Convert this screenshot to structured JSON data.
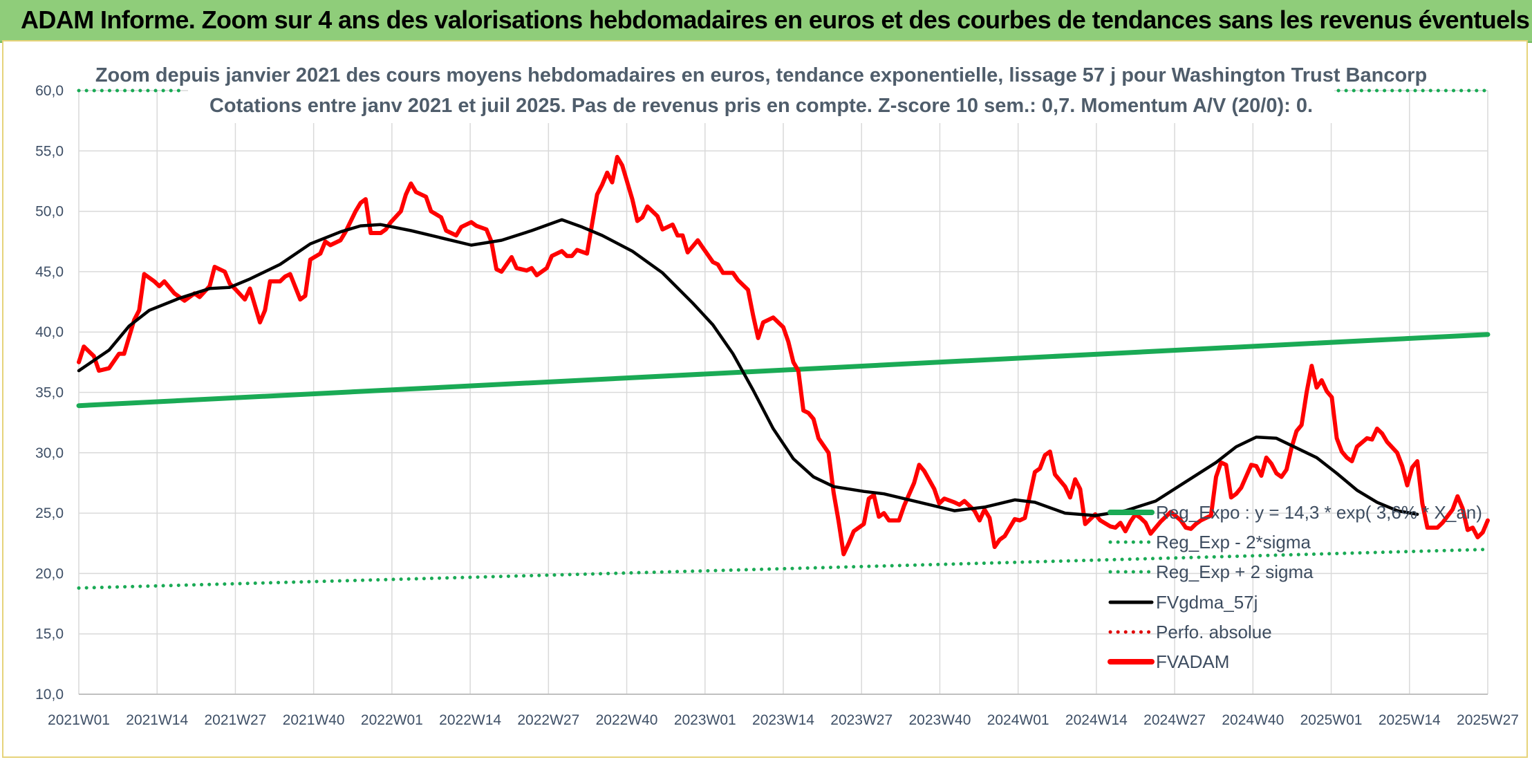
{
  "banner": {
    "title": "ADAM Informe. Zoom sur 4 ans des valorisations hebdomadaires en euros et des courbes de tendances sans les revenus éventuels"
  },
  "colors": {
    "banner": "#8fcd7a",
    "reg_expo": "#1aaa55",
    "fvgdma": "#000000",
    "fvadam": "#ff0000",
    "perfo": "#e00000",
    "grid": "#d9d9d9"
  },
  "chart_data": {
    "type": "line",
    "title": "Zoom depuis janvier 2021 des cours moyens hebdomadaires en euros, tendance exponentielle, lissage 57 j pour Washington Trust Bancorp",
    "subtitle": "Cotations entre janv 2021 et juil 2025. Pas de revenus pris en compte. Z-score 10 sem.: 0,7. Momentum A/V (20/0): 0.",
    "xlabel": "",
    "ylabel": "",
    "ylim": [
      10,
      60
    ],
    "yticks": [
      "10,0",
      "15,0",
      "20,0",
      "25,0",
      "30,0",
      "35,0",
      "40,0",
      "45,0",
      "50,0",
      "55,0",
      "60,0"
    ],
    "xticks": [
      "2021W01",
      "2021W14",
      "2021W27",
      "2021W40",
      "2022W01",
      "2022W14",
      "2022W27",
      "2022W40",
      "2023W01",
      "2023W14",
      "2023W27",
      "2023W40",
      "2024W01",
      "2024W14",
      "2024W27",
      "2024W40",
      "2025W01",
      "2025W14",
      "2025W27"
    ],
    "grid": true,
    "legend_position": "right",
    "series": [
      {
        "name": "Reg_Expo : y = 14,3 * exp( 3,6% * X_an)",
        "style": "solid-thick",
        "color": "#1aaa55",
        "points": [
          [
            0,
            33.9
          ],
          [
            234,
            39.8
          ]
        ]
      },
      {
        "name": "Reg_Exp - 2*sigma",
        "style": "dotted",
        "color": "#1aaa55",
        "points": [
          [
            0,
            18.8
          ],
          [
            234,
            22.0
          ]
        ]
      },
      {
        "name": "Reg_Exp + 2 sigma",
        "style": "dotted",
        "color": "#1aaa55",
        "points": [
          [
            0,
            60.0
          ],
          [
            234,
            60.0
          ]
        ]
      },
      {
        "name": "FVgdma_57j",
        "style": "solid",
        "color": "#000000",
        "points": [
          [
            0,
            36.8
          ],
          [
            6,
            38.5
          ],
          [
            10,
            40.5
          ],
          [
            14,
            41.8
          ],
          [
            20,
            42.8
          ],
          [
            26,
            43.6
          ],
          [
            30,
            43.7
          ],
          [
            34,
            44.4
          ],
          [
            40,
            45.6
          ],
          [
            46,
            47.3
          ],
          [
            52,
            48.3
          ],
          [
            56,
            48.8
          ],
          [
            60,
            48.9
          ],
          [
            66,
            48.4
          ],
          [
            72,
            47.8
          ],
          [
            78,
            47.2
          ],
          [
            84,
            47.6
          ],
          [
            90,
            48.4
          ],
          [
            96,
            49.3
          ],
          [
            100,
            48.7
          ],
          [
            104,
            48.0
          ],
          [
            110,
            46.7
          ],
          [
            116,
            44.9
          ],
          [
            122,
            42.4
          ],
          [
            126,
            40.6
          ],
          [
            130,
            38.2
          ],
          [
            134,
            35.2
          ],
          [
            138,
            32.0
          ],
          [
            142,
            29.5
          ],
          [
            146,
            28.0
          ],
          [
            150,
            27.2
          ],
          [
            156,
            26.8
          ],
          [
            160,
            26.6
          ],
          [
            166,
            26.0
          ],
          [
            170,
            25.6
          ],
          [
            174,
            25.2
          ],
          [
            180,
            25.5
          ],
          [
            186,
            26.1
          ],
          [
            190,
            25.9
          ],
          [
            196,
            25.0
          ],
          [
            202,
            24.8
          ],
          [
            208,
            25.2
          ],
          [
            214,
            26.0
          ],
          [
            220,
            27.6
          ],
          [
            226,
            29.2
          ],
          [
            230,
            30.5
          ],
          [
            234,
            31.3
          ],
          [
            238,
            31.2
          ],
          [
            242,
            30.4
          ],
          [
            246,
            29.6
          ],
          [
            250,
            28.3
          ],
          [
            254,
            26.9
          ],
          [
            258,
            25.9
          ],
          [
            262,
            25.2
          ],
          [
            266,
            24.9
          ]
        ]
      },
      {
        "name": "Perfo. absolue",
        "style": "dotted",
        "color": "#e00000",
        "points": []
      },
      {
        "name": "FVADAM",
        "style": "solid-thick",
        "color": "#ff0000",
        "points": [
          [
            0,
            37.5
          ],
          [
            1,
            38.8
          ],
          [
            3,
            38.0
          ],
          [
            4,
            36.8
          ],
          [
            6,
            37.0
          ],
          [
            8,
            38.2
          ],
          [
            9,
            38.2
          ],
          [
            11,
            41.0
          ],
          [
            12,
            41.8
          ],
          [
            13,
            44.8
          ],
          [
            15,
            44.2
          ],
          [
            16,
            43.8
          ],
          [
            17,
            44.2
          ],
          [
            19,
            43.2
          ],
          [
            21,
            42.6
          ],
          [
            23,
            43.2
          ],
          [
            24,
            42.9
          ],
          [
            26,
            43.8
          ],
          [
            27,
            45.4
          ],
          [
            29,
            45.0
          ],
          [
            30,
            44.0
          ],
          [
            31,
            43.6
          ],
          [
            33,
            42.7
          ],
          [
            34,
            43.6
          ],
          [
            36,
            40.8
          ],
          [
            37,
            41.8
          ],
          [
            38,
            44.2
          ],
          [
            40,
            44.2
          ],
          [
            41,
            44.6
          ],
          [
            42,
            44.8
          ],
          [
            44,
            42.7
          ],
          [
            45,
            43.0
          ],
          [
            46,
            46.0
          ],
          [
            48,
            46.5
          ],
          [
            49,
            47.5
          ],
          [
            50,
            47.2
          ],
          [
            52,
            47.6
          ],
          [
            53,
            48.3
          ],
          [
            55,
            50.0
          ],
          [
            56,
            50.7
          ],
          [
            57,
            51.0
          ],
          [
            58,
            48.2
          ],
          [
            60,
            48.2
          ],
          [
            61,
            48.5
          ],
          [
            62,
            49.1
          ],
          [
            64,
            50.0
          ],
          [
            65,
            51.4
          ],
          [
            66,
            52.3
          ],
          [
            67,
            51.6
          ],
          [
            69,
            51.2
          ],
          [
            70,
            50.0
          ],
          [
            72,
            49.5
          ],
          [
            73,
            48.4
          ],
          [
            75,
            48.0
          ],
          [
            76,
            48.7
          ],
          [
            78,
            49.1
          ],
          [
            79,
            48.8
          ],
          [
            81,
            48.5
          ],
          [
            82,
            47.5
          ],
          [
            83,
            45.2
          ],
          [
            84,
            45.0
          ],
          [
            86,
            46.2
          ],
          [
            87,
            45.3
          ],
          [
            89,
            45.1
          ],
          [
            90,
            45.3
          ],
          [
            91,
            44.7
          ],
          [
            93,
            45.3
          ],
          [
            94,
            46.3
          ],
          [
            96,
            46.7
          ],
          [
            97,
            46.3
          ],
          [
            98,
            46.3
          ],
          [
            99,
            46.8
          ],
          [
            101,
            46.5
          ],
          [
            103,
            51.4
          ],
          [
            104,
            52.2
          ],
          [
            105,
            53.2
          ],
          [
            106,
            52.4
          ],
          [
            107,
            54.5
          ],
          [
            108,
            53.8
          ],
          [
            110,
            51.0
          ],
          [
            111,
            49.2
          ],
          [
            112,
            49.5
          ],
          [
            113,
            50.4
          ],
          [
            115,
            49.6
          ],
          [
            116,
            48.5
          ],
          [
            118,
            48.9
          ],
          [
            119,
            48.0
          ],
          [
            120,
            48.0
          ],
          [
            121,
            46.6
          ],
          [
            123,
            47.6
          ],
          [
            124,
            47.0
          ],
          [
            126,
            45.8
          ],
          [
            127,
            45.6
          ],
          [
            128,
            44.9
          ],
          [
            130,
            44.9
          ],
          [
            131,
            44.3
          ],
          [
            133,
            43.5
          ],
          [
            134,
            41.4
          ],
          [
            135,
            39.5
          ],
          [
            136,
            40.8
          ],
          [
            137,
            41.0
          ],
          [
            138,
            41.2
          ],
          [
            140,
            40.4
          ],
          [
            141,
            39.2
          ],
          [
            142,
            37.5
          ],
          [
            143,
            36.8
          ],
          [
            144,
            33.5
          ],
          [
            145,
            33.3
          ],
          [
            146,
            32.8
          ],
          [
            147,
            31.2
          ],
          [
            149,
            30.0
          ],
          [
            150,
            26.7
          ],
          [
            151,
            24.3
          ],
          [
            152,
            21.6
          ],
          [
            153,
            22.5
          ],
          [
            154,
            23.5
          ],
          [
            156,
            24.1
          ],
          [
            157,
            26.2
          ],
          [
            158,
            26.5
          ],
          [
            159,
            24.7
          ],
          [
            160,
            25.0
          ],
          [
            161,
            24.4
          ],
          [
            163,
            24.4
          ],
          [
            164,
            25.6
          ],
          [
            166,
            27.5
          ],
          [
            167,
            29.0
          ],
          [
            168,
            28.5
          ],
          [
            170,
            27.0
          ],
          [
            171,
            25.8
          ],
          [
            172,
            26.2
          ],
          [
            174,
            25.9
          ],
          [
            175,
            25.7
          ],
          [
            176,
            26.0
          ],
          [
            178,
            25.2
          ],
          [
            179,
            24.4
          ],
          [
            180,
            25.3
          ],
          [
            181,
            24.6
          ],
          [
            182,
            22.2
          ],
          [
            183,
            22.8
          ],
          [
            184,
            23.1
          ],
          [
            186,
            24.5
          ],
          [
            187,
            24.4
          ],
          [
            188,
            24.6
          ],
          [
            189,
            26.5
          ],
          [
            190,
            28.4
          ],
          [
            191,
            28.7
          ],
          [
            192,
            29.8
          ],
          [
            193,
            30.1
          ],
          [
            194,
            28.2
          ],
          [
            196,
            27.2
          ],
          [
            197,
            26.3
          ],
          [
            198,
            27.8
          ],
          [
            199,
            27.0
          ],
          [
            200,
            24.1
          ],
          [
            202,
            24.9
          ],
          [
            203,
            24.4
          ],
          [
            205,
            23.9
          ],
          [
            206,
            23.8
          ],
          [
            207,
            24.2
          ],
          [
            208,
            23.5
          ],
          [
            209,
            24.3
          ],
          [
            210,
            24.9
          ],
          [
            211,
            24.6
          ],
          [
            212,
            24.2
          ],
          [
            213,
            23.3
          ],
          [
            215,
            24.3
          ],
          [
            216,
            24.7
          ],
          [
            217,
            25.1
          ],
          [
            219,
            24.4
          ],
          [
            220,
            23.8
          ],
          [
            221,
            23.7
          ],
          [
            222,
            24.1
          ],
          [
            223,
            24.4
          ],
          [
            225,
            24.8
          ],
          [
            226,
            28.0
          ],
          [
            227,
            29.2
          ],
          [
            228,
            29.0
          ],
          [
            229,
            26.3
          ],
          [
            230,
            26.6
          ],
          [
            231,
            27.1
          ],
          [
            233,
            29.0
          ],
          [
            234,
            28.9
          ],
          [
            235,
            28.1
          ],
          [
            236,
            29.6
          ],
          [
            237,
            29.1
          ],
          [
            238,
            28.3
          ],
          [
            239,
            28.0
          ],
          [
            240,
            28.6
          ],
          [
            241,
            30.4
          ],
          [
            242,
            31.8
          ],
          [
            243,
            32.3
          ],
          [
            244,
            35.0
          ],
          [
            245,
            37.2
          ],
          [
            246,
            35.4
          ],
          [
            247,
            36.0
          ],
          [
            248,
            35.1
          ],
          [
            249,
            34.6
          ],
          [
            250,
            31.2
          ],
          [
            251,
            30.1
          ],
          [
            252,
            29.6
          ],
          [
            253,
            29.3
          ],
          [
            254,
            30.5
          ],
          [
            256,
            31.2
          ],
          [
            257,
            31.1
          ],
          [
            258,
            32.0
          ],
          [
            259,
            31.6
          ],
          [
            260,
            30.9
          ],
          [
            262,
            30.0
          ],
          [
            263,
            28.9
          ],
          [
            264,
            27.3
          ],
          [
            265,
            28.8
          ],
          [
            266,
            29.3
          ],
          [
            267,
            25.8
          ],
          [
            268,
            23.8
          ],
          [
            270,
            23.8
          ],
          [
            271,
            24.2
          ],
          [
            273,
            25.3
          ],
          [
            274,
            26.4
          ],
          [
            275,
            25.4
          ],
          [
            276,
            23.6
          ],
          [
            277,
            23.8
          ],
          [
            278,
            23.0
          ],
          [
            279,
            23.4
          ],
          [
            280,
            24.4
          ]
        ]
      }
    ]
  }
}
